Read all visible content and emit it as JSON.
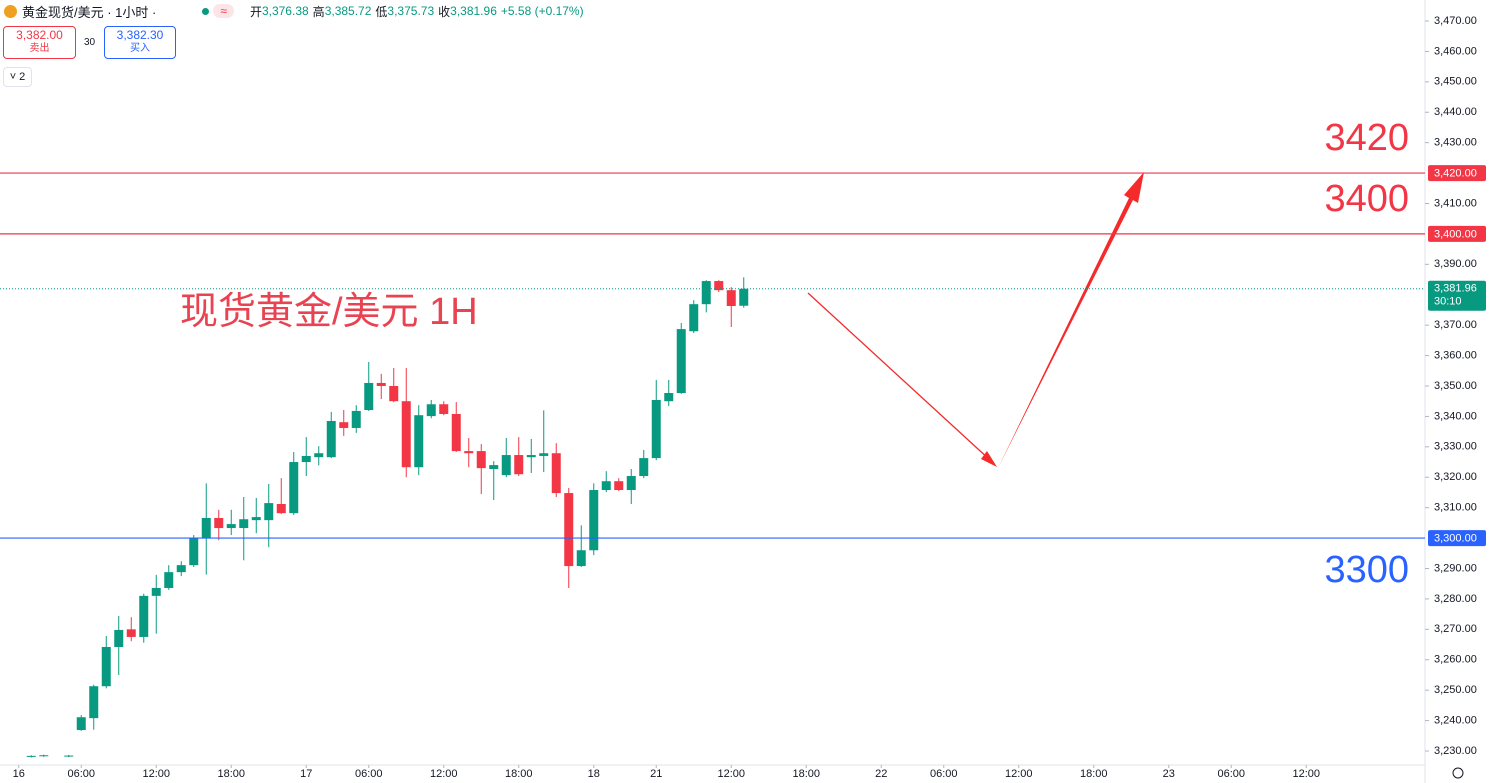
{
  "header": {
    "symbol": "黄金现货/美元 · 1小时 ·",
    "badge": "≈",
    "open_label": "开",
    "open": "3,376.38",
    "high_label": "高",
    "high": "3,385.72",
    "low_label": "低",
    "low": "3,375.73",
    "close_label": "收",
    "close": "3,381.96",
    "change": "+5.58 (+0.17%)"
  },
  "order_panel": {
    "sell_price": "3,382.00",
    "sell_label": "卖出",
    "spread": "30",
    "buy_price": "3,382.30",
    "buy_label": "买入",
    "indicators_count": "2"
  },
  "chart_data": {
    "type": "candlestick",
    "annotation": "现货黄金/美元 1H",
    "up_color": "#089981",
    "down_color": "#f23645",
    "x": [
      2,
      3,
      5,
      6,
      7,
      8,
      9,
      10,
      11,
      12,
      13,
      14,
      15,
      16,
      17,
      18,
      19,
      20,
      21,
      22,
      23,
      24,
      25,
      26,
      27,
      28,
      29,
      30,
      31,
      32,
      33,
      34,
      35,
      36,
      37,
      38,
      39,
      40,
      41,
      42,
      43,
      44,
      45,
      46,
      47,
      48,
      49,
      50,
      51,
      52,
      53,
      54,
      55,
      56,
      57,
      58,
      59
    ],
    "open": [
      3228.2,
      3228.4,
      3228.3,
      3236.9,
      3240.8,
      3251.3,
      3264.2,
      3270.0,
      3267.5,
      3281.0,
      3283.6,
      3288.8,
      3291.1,
      3300.0,
      3306.6,
      3303.3,
      3303.3,
      3305.9,
      3305.9,
      3311.2,
      3308.2,
      3325.0,
      3326.6,
      3326.6,
      3338.1,
      3336.2,
      3342.1,
      3351.0,
      3350.0,
      3345.0,
      3323.3,
      3340.1,
      3344.0,
      3340.8,
      3328.6,
      3328.6,
      3322.7,
      3320.7,
      3327.3,
      3326.6,
      3327.0,
      3327.9,
      3314.8,
      3290.8,
      3296.0,
      3315.8,
      3318.7,
      3315.8,
      3320.4,
      3326.3,
      3345.0,
      3347.7,
      3368.0,
      3376.9,
      3384.5,
      3381.5,
      3376.38
    ],
    "high": [
      3228.6,
      3228.8,
      3228.7,
      3241.8,
      3251.8,
      3267.8,
      3274.4,
      3274.0,
      3281.7,
      3287.9,
      3291.1,
      3292.4,
      3301.0,
      3318.0,
      3309.3,
      3309.3,
      3313.5,
      3313.2,
      3317.8,
      3319.7,
      3328.3,
      3333.2,
      3330.2,
      3341.5,
      3342.1,
      3343.7,
      3357.9,
      3354.0,
      3355.9,
      3355.9,
      3343.7,
      3345.4,
      3345.0,
      3344.7,
      3332.9,
      3330.9,
      3325.3,
      3332.9,
      3333.2,
      3332.6,
      3342.0,
      3331.2,
      3316.5,
      3304.2,
      3318.0,
      3322.0,
      3319.7,
      3322.7,
      3329.0,
      3352.0,
      3352.0,
      3370.7,
      3378.2,
      3384.8,
      3384.8,
      3382.5,
      3385.72
    ],
    "low": [
      3227.9,
      3228.1,
      3228.0,
      3236.6,
      3237.0,
      3250.6,
      3255.0,
      3266.1,
      3265.6,
      3268.6,
      3283.0,
      3287.5,
      3290.5,
      3288.0,
      3299.3,
      3301.0,
      3292.7,
      3301.6,
      3297.0,
      3307.9,
      3307.6,
      3320.4,
      3323.9,
      3326.3,
      3333.6,
      3334.6,
      3341.8,
      3345.7,
      3344.7,
      3320.0,
      3320.7,
      3339.4,
      3340.4,
      3328.3,
      3323.3,
      3314.5,
      3312.5,
      3320.0,
      3320.4,
      3321.4,
      3321.7,
      3313.5,
      3283.6,
      3290.5,
      3294.4,
      3315.1,
      3315.5,
      3311.2,
      3319.7,
      3325.6,
      3343.4,
      3347.4,
      3367.4,
      3374.2,
      3380.9,
      3369.4,
      3375.73
    ],
    "close": [
      3228.4,
      3228.6,
      3228.5,
      3241.1,
      3251.3,
      3264.2,
      3269.8,
      3267.5,
      3281.0,
      3283.6,
      3288.8,
      3291.1,
      3300.0,
      3306.6,
      3303.3,
      3304.6,
      3306.2,
      3306.9,
      3311.5,
      3308.2,
      3325.0,
      3327.0,
      3327.9,
      3338.5,
      3336.2,
      3341.8,
      3351.0,
      3350.0,
      3345.0,
      3323.3,
      3340.4,
      3344.0,
      3340.8,
      3328.6,
      3327.9,
      3323.0,
      3324.0,
      3327.3,
      3321.0,
      3327.3,
      3327.9,
      3314.8,
      3290.8,
      3296.0,
      3315.8,
      3318.7,
      3315.8,
      3320.4,
      3326.3,
      3345.4,
      3347.7,
      3368.7,
      3376.9,
      3384.5,
      3381.5,
      3376.3,
      3381.96
    ],
    "xlim": [
      -0.5,
      113.5
    ],
    "xticks": [
      {
        "value": 1,
        "label": "16"
      },
      {
        "value": 6,
        "label": "06:00"
      },
      {
        "value": 12,
        "label": "12:00"
      },
      {
        "value": 18,
        "label": "18:00"
      },
      {
        "value": 24,
        "label": "17"
      },
      {
        "value": 29,
        "label": "06:00"
      },
      {
        "value": 35,
        "label": "12:00"
      },
      {
        "value": 41,
        "label": "18:00"
      },
      {
        "value": 47,
        "label": "18"
      },
      {
        "value": 52,
        "label": "21"
      },
      {
        "value": 58,
        "label": "12:00"
      },
      {
        "value": 64,
        "label": "18:00"
      },
      {
        "value": 70,
        "label": "22"
      },
      {
        "value": 75,
        "label": "06:00"
      },
      {
        "value": 81,
        "label": "12:00"
      },
      {
        "value": 87,
        "label": "18:00"
      },
      {
        "value": 93,
        "label": "23"
      },
      {
        "value": 98,
        "label": "06:00"
      },
      {
        "value": 104,
        "label": "12:00"
      }
    ],
    "ylim": [
      3225.4,
      3476.9
    ],
    "yticks": [
      {
        "value": 3230,
        "label": "3,230.00"
      },
      {
        "value": 3240,
        "label": "3,240.00"
      },
      {
        "value": 3250,
        "label": "3,250.00"
      },
      {
        "value": 3260,
        "label": "3,260.00"
      },
      {
        "value": 3270,
        "label": "3,270.00"
      },
      {
        "value": 3280,
        "label": "3,280.00"
      },
      {
        "value": 3290,
        "label": "3,290.00"
      },
      {
        "value": 3310,
        "label": "3,310.00"
      },
      {
        "value": 3320,
        "label": "3,320.00"
      },
      {
        "value": 3330,
        "label": "3,330.00"
      },
      {
        "value": 3340,
        "label": "3,340.00"
      },
      {
        "value": 3350,
        "label": "3,350.00"
      },
      {
        "value": 3360,
        "label": "3,360.00"
      },
      {
        "value": 3370,
        "label": "3,370.00"
      },
      {
        "value": 3390,
        "label": "3,390.00"
      },
      {
        "value": 3410,
        "label": "3,410.00"
      },
      {
        "value": 3430,
        "label": "3,430.00"
      },
      {
        "value": 3440,
        "label": "3,440.00"
      },
      {
        "value": 3450,
        "label": "3,450.00"
      },
      {
        "value": 3460,
        "label": "3,460.00"
      },
      {
        "value": 3470,
        "label": "3,470.00"
      }
    ],
    "levels": [
      {
        "value": 3420,
        "label": "3,420.00",
        "color": "#f23645"
      },
      {
        "value": 3400,
        "label": "3,400.00",
        "color": "#f23645"
      },
      {
        "value": 3300,
        "label": "3,300.00",
        "color": "#2962ff"
      }
    ],
    "last_price": {
      "value": 3381.96,
      "label": "3,381.96",
      "countdown": "30:10",
      "color": "#089981"
    }
  }
}
